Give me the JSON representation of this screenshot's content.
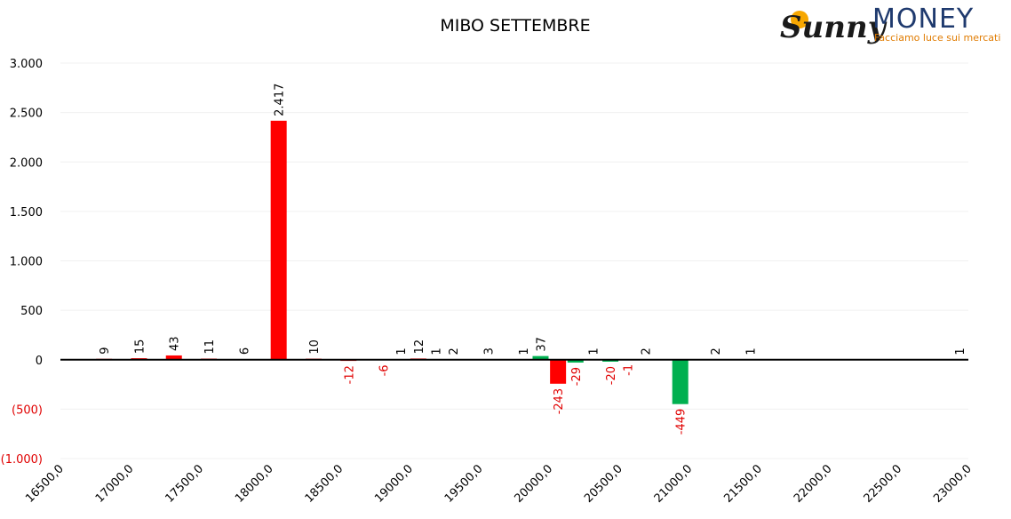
{
  "chart_data": {
    "type": "bar",
    "title": "MIBO SETTEMBRE",
    "xlim": [
      16500,
      23000
    ],
    "xticks": [
      {
        "value": 16500,
        "label": "16500,0"
      },
      {
        "value": 17000,
        "label": "17000,0"
      },
      {
        "value": 17500,
        "label": "17500,0"
      },
      {
        "value": 18000,
        "label": "18000,0"
      },
      {
        "value": 18500,
        "label": "18500,0"
      },
      {
        "value": 19000,
        "label": "19000,0"
      },
      {
        "value": 19500,
        "label": "19500,0"
      },
      {
        "value": 20000,
        "label": "20000,0"
      },
      {
        "value": 20500,
        "label": "20500,0"
      },
      {
        "value": 21000,
        "label": "21000,0"
      },
      {
        "value": 21500,
        "label": "21500,0"
      },
      {
        "value": 22000,
        "label": "22000,0"
      },
      {
        "value": 22500,
        "label": "22500,0"
      },
      {
        "value": 23000,
        "label": "23000,0"
      }
    ],
    "ylim": [
      -1000,
      3000
    ],
    "yticks": [
      {
        "value": 3000,
        "label": "3.000"
      },
      {
        "value": 2500,
        "label": "2.500"
      },
      {
        "value": 2000,
        "label": "2.000"
      },
      {
        "value": 1500,
        "label": "1.500"
      },
      {
        "value": 1000,
        "label": "1.000"
      },
      500,
      0,
      {
        "value": -500,
        "label": "(500)"
      },
      {
        "value": -1000,
        "label": "(1.000)"
      }
    ],
    "grid": true,
    "series": [
      {
        "color": "#ff0000",
        "x": [
          16812.5,
          17062.5,
          17312.5,
          17562.5,
          17812.5,
          18062.5,
          18312.5,
          18562.5,
          18812.5,
          19062.5,
          19312.5,
          19562.5,
          19812.5,
          20062.5,
          20312.5,
          20562.5
        ],
        "values": [
          9,
          15,
          43,
          11,
          6,
          2417,
          10,
          -12,
          -6,
          12,
          2,
          3,
          1,
          -243,
          1,
          -1
        ],
        "value_labels": [
          "9",
          "15",
          "43",
          "11",
          "6",
          "2.417",
          "10",
          "-12",
          "-6",
          "12",
          "2",
          "3",
          "1",
          "-243",
          "1",
          "-1"
        ]
      },
      {
        "color": "#00b050",
        "x": [
          18937.5,
          19187.5,
          19937.5,
          20187.5,
          20437.5,
          20687.5,
          20937.5,
          21187.5,
          21437.5,
          22937.5
        ],
        "values": [
          1,
          1,
          37,
          -29,
          -20,
          2,
          -449,
          2,
          1,
          1
        ]
      }
    ]
  },
  "logo": {
    "brand": "Sunny",
    "name": "MONEY",
    "tagline": "Facciamo luce sui mercati"
  }
}
